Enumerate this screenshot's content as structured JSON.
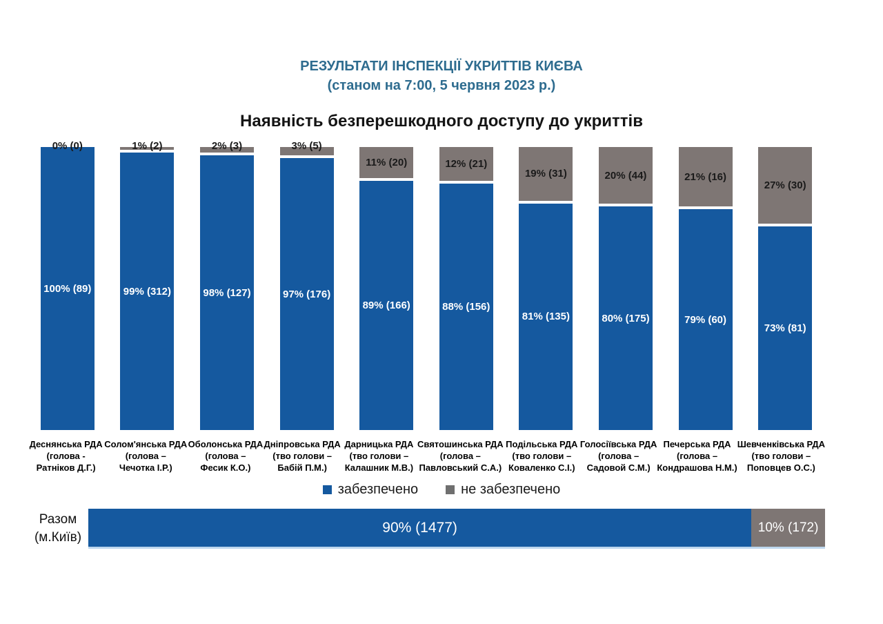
{
  "header": {
    "title": "РЕЗУЛЬТАТИ ІНСПЕКЦІЇ УКРИТТІВ КИЄВА",
    "subtitle": "(станом на 7:00, 5 червня 2023 р.)"
  },
  "colors": {
    "provided_blue": "#15599F",
    "not_provided_gray": "#7E7674",
    "header_blue": "#2E6C8F"
  },
  "legend": [
    {
      "label": "забезпечено",
      "color": "#15599F"
    },
    {
      "label": "не забезпечено",
      "color": "#7E7674"
    }
  ],
  "chart_data": {
    "type": "bar",
    "stacked": true,
    "percent_stacked": true,
    "title": "Наявність безперешкодного доступу до укриттів",
    "categories": [
      "Деснянська РДА (голова - Ратніков Д.Г.)",
      "Солом'янська РДА (голова – Чечотка І.Р.)",
      "Оболонська РДА (голова – Фесик К.О.)",
      "Дніпровська РДА (тво голови – Бабій П.М.)",
      "Дарницька РДА (тво голови – Калашник М.В.)",
      "Святошинська РДА (голова – Павловський С.А.)",
      "Подільська РДА (тво голови – Коваленко С.І.)",
      "Голосіївська РДА (голова – Садовой С.М.)",
      "Печерська РДА (голова – Кондрашова Н.М.)",
      "Шевченківська РДА (тво голови – Поповцев О.С.)"
    ],
    "series": [
      {
        "name": "забезпечено",
        "color": "#15599F",
        "pct": [
          100,
          99,
          98,
          97,
          89,
          88,
          81,
          80,
          79,
          73
        ],
        "counts": [
          89,
          312,
          127,
          176,
          166,
          156,
          135,
          175,
          60,
          81
        ]
      },
      {
        "name": "не забезпечено",
        "color": "#7E7674",
        "pct": [
          0,
          1,
          2,
          3,
          11,
          12,
          19,
          20,
          21,
          27
        ],
        "counts": [
          0,
          2,
          3,
          5,
          20,
          21,
          31,
          44,
          16,
          30
        ]
      }
    ],
    "legend_position": "bottom",
    "grid": false,
    "total_row": {
      "label": "Разом (м.Київ)",
      "provided": {
        "pct": 90,
        "count": 1477
      },
      "not_provided": {
        "pct": 10,
        "count": 172
      }
    }
  },
  "districts": [
    {
      "name": "Деснянська РДА",
      "head1": "(голова -",
      "head2": "Ратніков Д.Г.)",
      "provided": {
        "pct": 100,
        "count": 89,
        "label": "100% (89)"
      },
      "not_provided": {
        "pct": 0,
        "count": 0,
        "label": "0% (0)"
      }
    },
    {
      "name": "Солом'янська РДА",
      "head1": "(голова –",
      "head2": "Чечотка І.Р.)",
      "provided": {
        "pct": 99,
        "count": 312,
        "label": "99% (312)"
      },
      "not_provided": {
        "pct": 1,
        "count": 2,
        "label": "1% (2)"
      }
    },
    {
      "name": "Оболонська РДА",
      "head1": "(голова –",
      "head2": "Фесик К.О.)",
      "provided": {
        "pct": 98,
        "count": 127,
        "label": "98% (127)"
      },
      "not_provided": {
        "pct": 2,
        "count": 3,
        "label": "2% (3)"
      }
    },
    {
      "name": "Дніпровська РДА",
      "head1": "(тво голови –",
      "head2": "Бабій П.М.)",
      "provided": {
        "pct": 97,
        "count": 176,
        "label": "97% (176)"
      },
      "not_provided": {
        "pct": 3,
        "count": 5,
        "label": "3% (5)"
      }
    },
    {
      "name": "Дарницька РДА",
      "head1": "(тво голови –",
      "head2": "Калашник М.В.)",
      "provided": {
        "pct": 89,
        "count": 166,
        "label": "89% (166)"
      },
      "not_provided": {
        "pct": 11,
        "count": 20,
        "label": "11% (20)"
      }
    },
    {
      "name": "Святошинська РДА",
      "head1": "(голова –",
      "head2": "Павловський С.А.)",
      "provided": {
        "pct": 88,
        "count": 156,
        "label": "88% (156)"
      },
      "not_provided": {
        "pct": 12,
        "count": 21,
        "label": "12% (21)"
      }
    },
    {
      "name": "Подільська РДА",
      "head1": "(тво голови –",
      "head2": "Коваленко С.І.)",
      "provided": {
        "pct": 81,
        "count": 135,
        "label": "81% (135)"
      },
      "not_provided": {
        "pct": 19,
        "count": 31,
        "label": "19% (31)"
      }
    },
    {
      "name": "Голосіївська РДА",
      "head1": "(голова –",
      "head2": "Садовой С.М.)",
      "provided": {
        "pct": 80,
        "count": 175,
        "label": "80% (175)"
      },
      "not_provided": {
        "pct": 20,
        "count": 44,
        "label": "20% (44)"
      }
    },
    {
      "name": "Печерська РДА",
      "head1": "(голова –",
      "head2": "Кондрашова Н.М.)",
      "provided": {
        "pct": 79,
        "count": 60,
        "label": "79% (60)"
      },
      "not_provided": {
        "pct": 21,
        "count": 16,
        "label": "21% (16)"
      }
    },
    {
      "name": "Шевченківська РДА",
      "head1": "(тво голови –",
      "head2": "Поповцев О.С.)",
      "provided": {
        "pct": 73,
        "count": 81,
        "label": "73% (81)"
      },
      "not_provided": {
        "pct": 27,
        "count": 30,
        "label": "27% (30)"
      }
    }
  ],
  "total": {
    "label1": "Разом",
    "label2": "(м.Київ)",
    "provided_pct": 90,
    "provided_label": "90% (1477)",
    "not_provided_pct": 10,
    "not_provided_label": "10% (172)"
  }
}
